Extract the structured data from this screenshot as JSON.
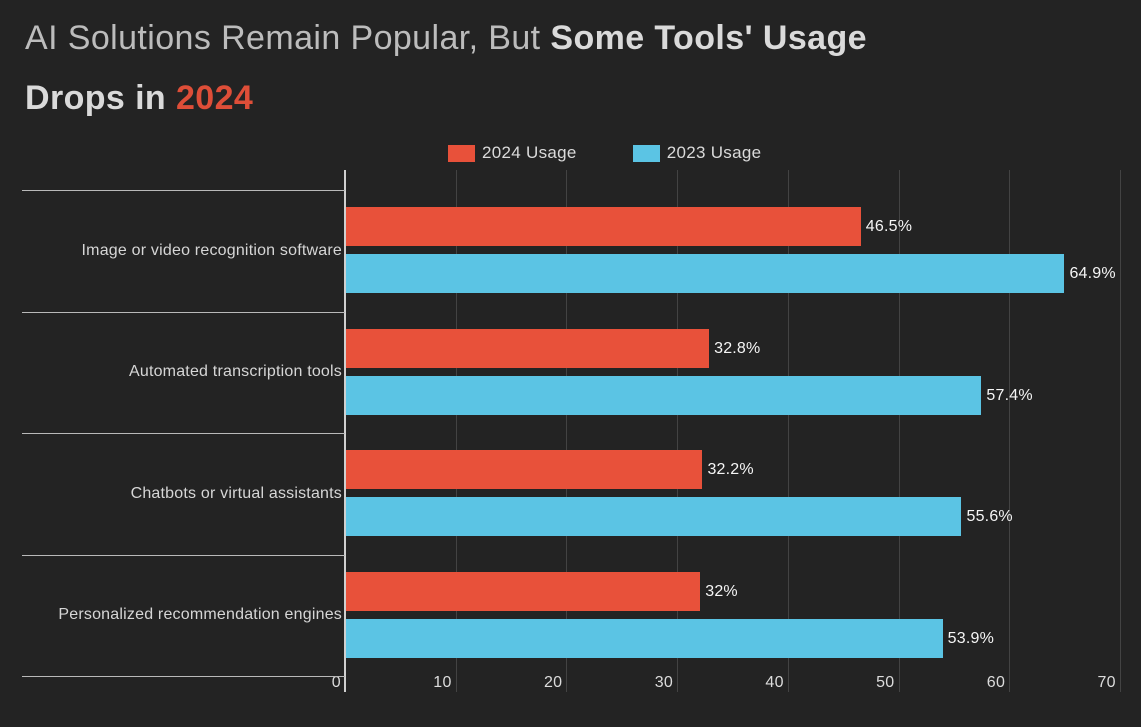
{
  "title": {
    "line1_regular": "AI Solutions Remain Popular, But ",
    "line1_bold": "Some Tools' Usage",
    "line2_bold": "Drops in ",
    "line2_year": "2024"
  },
  "colors": {
    "background": "#232323",
    "title_regular": "#bcbcbc",
    "title_bold": "#dadada",
    "title_year": "#de4e38",
    "series_2024": "#e8513a",
    "series_2023": "#5bc4e4",
    "axis_line": "#cfcfcf",
    "divider_line": "#b9b9b9",
    "value_label": "#f5f5f5",
    "category_label": "#d6d6d6",
    "tick_label": "#dcdcdc"
  },
  "legend": {
    "items": [
      {
        "label": "2024 Usage",
        "color": "#e8513a"
      },
      {
        "label": "2023 Usage",
        "color": "#5bc4e4"
      }
    ]
  },
  "chart_data": {
    "type": "bar",
    "orientation": "horizontal",
    "title": "AI Solutions Remain Popular, But Some Tools' Usage Drops in 2024",
    "categories": [
      "Image or video recognition software",
      "Automated transcription tools",
      "Chatbots or virtual assistants",
      "Personalized recommendation engines"
    ],
    "series": [
      {
        "name": "2024 Usage",
        "color": "#e8513a",
        "values": [
          46.5,
          32.8,
          32.2,
          32
        ],
        "labels": [
          "46.5%",
          "32.8%",
          "32.2%",
          "32%"
        ]
      },
      {
        "name": "2023 Usage",
        "color": "#5bc4e4",
        "values": [
          64.9,
          57.4,
          55.6,
          53.9
        ],
        "labels": [
          "64.9%",
          "57.4%",
          "55.6%",
          "53.9%"
        ]
      }
    ],
    "xlabel": "",
    "ylabel": "",
    "xlim": [
      0,
      70
    ],
    "xticks": [
      0,
      10,
      20,
      30,
      40,
      50,
      60,
      70
    ],
    "grid": true,
    "legend_position": "top-center"
  }
}
